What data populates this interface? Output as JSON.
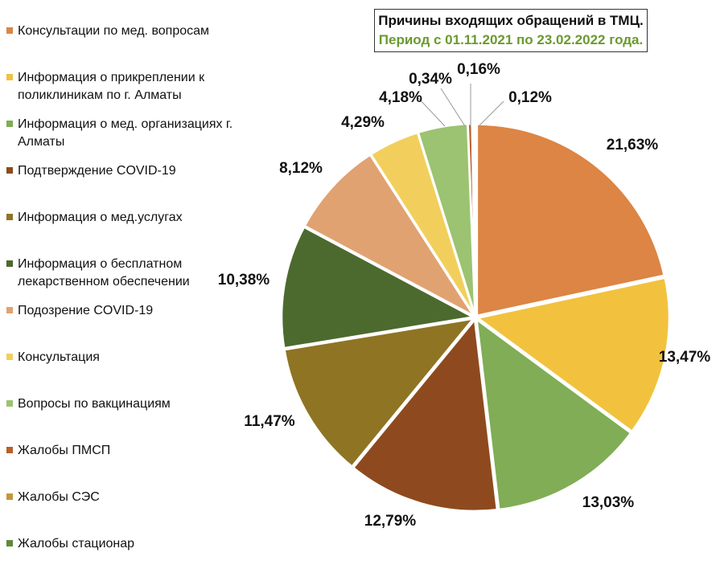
{
  "title": "Причины входящих обращений в ТМЦ.",
  "subtitle": "Период с 01.11.2021 по 23.02.2022 года.",
  "colors": {
    "consult_med": "#dc8544",
    "info_attach": "#f2c23e",
    "info_org": "#80ad55",
    "covid_confirm": "#8e4a1e",
    "info_services": "#8f7424",
    "free_drugs": "#4c6a2e",
    "covid_suspect": "#e1a271",
    "consultation": "#f2cf5c",
    "vaccines": "#9cc371",
    "pmsp": "#b8602a",
    "ses": "#c5963d",
    "stationar": "#5f8a3a"
  },
  "chart_data": {
    "type": "pie",
    "title": "Причины входящих обращений в ТМЦ.",
    "subtitle": "Период с 01.11.2021 по 23.02.2022 года.",
    "legend_position": "left",
    "slices": [
      {
        "name": "Консультации по мед. вопросам",
        "value": 21.63,
        "label": "21,63%",
        "color": "#dc8544"
      },
      {
        "name": "Информация о прикреплении к поликлиникам по г. Алматы",
        "value": 13.47,
        "label": "13,47%",
        "color": "#f2c23e"
      },
      {
        "name": "Информация о мед. организациях г. Алматы",
        "value": 13.03,
        "label": "13,03%",
        "color": "#80ad55"
      },
      {
        "name": "Подтверждение COVID-19",
        "value": 12.79,
        "label": "12,79%",
        "color": "#8e4a1e"
      },
      {
        "name": "Информация о мед.услугах",
        "value": 11.47,
        "label": "11,47%",
        "color": "#8f7424"
      },
      {
        "name": "Информация о бесплатном лекарственном обеспечении",
        "value": 10.38,
        "label": "10,38%",
        "color": "#4c6a2e"
      },
      {
        "name": "Подозрение COVID-19",
        "value": 8.12,
        "label": "8,12%",
        "color": "#e1a271"
      },
      {
        "name": "Консультация",
        "value": 4.29,
        "label": "4,29%",
        "color": "#f2cf5c"
      },
      {
        "name": "Вопросы по вакцинациям",
        "value": 4.18,
        "label": "4,18%",
        "color": "#9cc371"
      },
      {
        "name": "Жалобы ПМСП",
        "value": 0.34,
        "label": "0,34%",
        "color": "#b8602a"
      },
      {
        "name": "Жалобы СЭС",
        "value": 0.16,
        "label": "0,16%",
        "color": "#c5963d"
      },
      {
        "name": "Жалобы стационар",
        "value": 0.12,
        "label": "0,12%",
        "color": "#5f8a3a"
      }
    ]
  }
}
